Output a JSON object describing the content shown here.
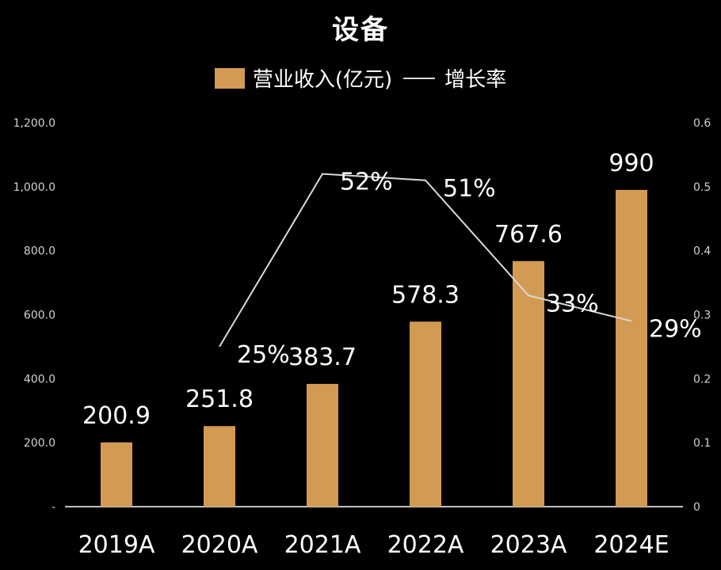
{
  "chart_data": {
    "type": "bar",
    "title": "设备",
    "categories": [
      "2019A",
      "2020A",
      "2021A",
      "2022A",
      "2023A",
      "2024E"
    ],
    "series": [
      {
        "name": "营业收入(亿元)",
        "type": "bar",
        "axis": "left",
        "values": [
          200.9,
          251.8,
          383.7,
          578.3,
          767.6,
          990
        ],
        "labels": [
          "200.9",
          "251.8",
          "383.7",
          "578.3",
          "767.6",
          "990"
        ]
      },
      {
        "name": "增长率",
        "type": "line",
        "axis": "right",
        "values": [
          null,
          0.25,
          0.52,
          0.51,
          0.33,
          0.29
        ],
        "labels": [
          "",
          "25%",
          "52%",
          "51%",
          "33%",
          "29%"
        ]
      }
    ],
    "y_left": {
      "ylim": [
        0,
        1200
      ],
      "ticks": [
        "-",
        "200.0",
        "400.0",
        "600.0",
        "800.0",
        "1,000.0",
        "1,200.0"
      ]
    },
    "y_right": {
      "ylim": [
        0,
        0.6
      ],
      "ticks": [
        "0",
        "0.1",
        "0.2",
        "0.3",
        "0.4",
        "0.5",
        "0.6"
      ]
    },
    "grid": false,
    "legend_position": "top-center"
  },
  "colors": {
    "bar": "#D39A53",
    "line": "#D9D9D9",
    "text": "#FFFFFF",
    "axis_text": "#D0D0D0",
    "background": "#000000"
  }
}
